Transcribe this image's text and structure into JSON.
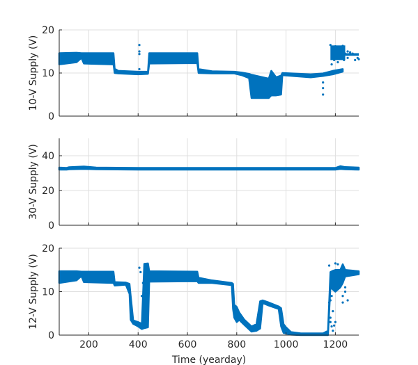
{
  "chart_data": [
    {
      "type": "scatter",
      "title": "",
      "xlabel": "",
      "ylabel": "10-V Supply (V)",
      "xlim": [
        80,
        1295
      ],
      "ylim": [
        0,
        20
      ],
      "xticks": [
        200,
        400,
        600,
        800,
        1000,
        1200
      ],
      "xtick_labels": [
        "",
        "",
        "",
        "",
        "",
        ""
      ],
      "yticks": [
        0,
        10,
        20
      ],
      "ytick_labels": [
        "0",
        "10",
        "20"
      ],
      "grid": true,
      "color": "#0072BD",
      "series": [
        {
          "name": "10-V Supply",
          "envelope": [
            [
              80,
              12.0,
              14.6
            ],
            [
              150,
              12.5,
              14.7
            ],
            [
              170,
              13.5,
              14.6
            ],
            [
              180,
              12.2,
              14.6
            ],
            [
              300,
              12.0,
              14.6
            ],
            [
              305,
              10.0,
              11.0
            ],
            [
              320,
              9.9,
              10.5
            ],
            [
              400,
              9.7,
              10.3
            ],
            [
              440,
              9.8,
              10.3
            ],
            [
              445,
              12.2,
              14.6
            ],
            [
              640,
              12.3,
              14.6
            ],
            [
              645,
              10.0,
              10.9
            ],
            [
              700,
              9.9,
              10.4
            ],
            [
              790,
              9.9,
              10.3
            ],
            [
              820,
              9.5,
              10.1
            ],
            [
              850,
              8.8,
              9.8
            ],
            [
              860,
              4.2,
              9.6
            ],
            [
              930,
              4.2,
              8.7
            ],
            [
              940,
              4.8,
              10.5
            ],
            [
              960,
              4.8,
              9.0
            ],
            [
              980,
              5.0,
              9.4
            ],
            [
              985,
              9.5,
              10.0
            ],
            [
              1100,
              9.0,
              9.7
            ],
            [
              1150,
              9.3,
              9.9
            ],
            [
              1190,
              9.7,
              10.5
            ],
            [
              1230,
              10.3,
              10.9
            ]
          ],
          "outliers": [
            [
              405,
              16.5
            ],
            [
              405,
              15.0
            ],
            [
              405,
              14.4
            ],
            [
              405,
              10.9
            ],
            [
              1150,
              5.0
            ],
            [
              1150,
              6.5
            ],
            [
              1150,
              7.8
            ],
            [
              1180,
              16.5
            ],
            [
              1190,
              15.5
            ],
            [
              1200,
              16.2
            ],
            [
              1230,
              16.3
            ],
            [
              1240,
              14.5
            ],
            [
              1250,
              15.0
            ],
            [
              1260,
              14.8
            ],
            [
              1270,
              14.5
            ],
            [
              1290,
              13.5
            ],
            [
              1185,
              12.0
            ],
            [
              1195,
              13.0
            ],
            [
              1210,
              12.5
            ],
            [
              1220,
              14.0
            ],
            [
              1235,
              13.0
            ],
            [
              1250,
              13.5
            ],
            [
              1280,
              13.0
            ],
            [
              1295,
              13.2
            ]
          ],
          "blocks": [
            [
              1180,
              1240,
              13.0,
              16.4
            ],
            [
              1240,
              1295,
              14.0,
              14.6
            ]
          ]
        }
      ]
    },
    {
      "type": "scatter",
      "title": "",
      "xlabel": "",
      "ylabel": "30-V Supply (V)",
      "xlim": [
        80,
        1295
      ],
      "ylim": [
        0,
        50
      ],
      "xticks": [
        200,
        400,
        600,
        800,
        1000,
        1200
      ],
      "xtick_labels": [
        "",
        "",
        "",
        "",
        "",
        ""
      ],
      "yticks": [
        0,
        20,
        40
      ],
      "ytick_labels": [
        "0",
        "20",
        "40"
      ],
      "grid": true,
      "color": "#0072BD",
      "series": [
        {
          "name": "30-V Supply",
          "envelope": [
            [
              80,
              32.0,
              33.2
            ],
            [
              110,
              32.0,
              33.0
            ],
            [
              120,
              32.2,
              33.4
            ],
            [
              180,
              32.4,
              33.8
            ],
            [
              230,
              32.2,
              33.2
            ],
            [
              400,
              32.0,
              33.0
            ],
            [
              700,
              32.0,
              33.0
            ],
            [
              1000,
              32.0,
              33.0
            ],
            [
              1200,
              32.0,
              33.0
            ],
            [
              1220,
              32.4,
              34.0
            ],
            [
              1240,
              32.2,
              33.5
            ],
            [
              1295,
              32.0,
              33.2
            ]
          ],
          "outliers": [],
          "blocks": []
        }
      ]
    },
    {
      "type": "scatter",
      "title": "",
      "xlabel": "Time (yearday)",
      "ylabel": "12-V Supply (V)",
      "xlim": [
        80,
        1295
      ],
      "ylim": [
        0,
        20
      ],
      "xticks": [
        200,
        400,
        600,
        800,
        1000,
        1200
      ],
      "xtick_labels": [
        "200",
        "400",
        "600",
        "800",
        "1000",
        "1200"
      ],
      "yticks": [
        0,
        10,
        20
      ],
      "ytick_labels": [
        "0",
        "10",
        "20"
      ],
      "grid": true,
      "color": "#0072BD",
      "series": [
        {
          "name": "12-V Supply",
          "envelope": [
            [
              80,
              12.0,
              14.7
            ],
            [
              150,
              12.6,
              14.7
            ],
            [
              170,
              13.6,
              14.6
            ],
            [
              180,
              12.2,
              14.6
            ],
            [
              300,
              12.0,
              14.6
            ],
            [
              305,
              11.4,
              12.2
            ],
            [
              350,
              11.6,
              12.1
            ],
            [
              365,
              9.5,
              11.8
            ],
            [
              370,
              3.5,
              9.0
            ],
            [
              380,
              2.6,
              3.4
            ],
            [
              400,
              2.0,
              3.0
            ],
            [
              415,
              1.4,
              2.6
            ],
            [
              425,
              1.6,
              16.4
            ],
            [
              440,
              1.8,
              16.5
            ],
            [
              445,
              12.3,
              14.7
            ],
            [
              640,
              12.4,
              14.6
            ],
            [
              645,
              12.0,
              13.2
            ],
            [
              700,
              12.0,
              12.6
            ],
            [
              780,
              11.5,
              12.0
            ],
            [
              785,
              6.0,
              11.8
            ],
            [
              790,
              4.0,
              7.0
            ],
            [
              800,
              3.0,
              6.5
            ],
            [
              810,
              3.5,
              5.2
            ],
            [
              830,
              2.4,
              3.6
            ],
            [
              860,
              0.8,
              2.0
            ],
            [
              880,
              1.0,
              2.5
            ],
            [
              895,
              1.5,
              7.8
            ],
            [
              905,
              7.4,
              8.0
            ],
            [
              930,
              6.8,
              7.5
            ],
            [
              970,
              6.0,
              6.6
            ],
            [
              980,
              2.0,
              6.2
            ],
            [
              990,
              0.5,
              2.5
            ],
            [
              1000,
              0.4,
              1.8
            ],
            [
              1020,
              0.1,
              0.7
            ],
            [
              1060,
              0.0,
              0.4
            ],
            [
              1150,
              0.0,
              0.4
            ],
            [
              1170,
              0.0,
              1.0
            ],
            [
              1180,
              11.0,
              14.5
            ],
            [
              1190,
              10.5,
              14.8
            ],
            [
              1200,
              10.0,
              15.0
            ],
            [
              1220,
              11.0,
              15.0
            ],
            [
              1230,
              12.0,
              16.3
            ],
            [
              1240,
              13.5,
              15.0
            ],
            [
              1295,
              14.0,
              14.7
            ]
          ],
          "outliers": [
            [
              1175,
              16.0
            ],
            [
              1175,
              7.5
            ],
            [
              1175,
              6.0
            ],
            [
              1180,
              4.0
            ],
            [
              1180,
              3.0
            ],
            [
              1185,
              2.0
            ],
            [
              1190,
              5.5
            ],
            [
              1190,
              1.0
            ],
            [
              1195,
              2.2
            ],
            [
              1200,
              3.0
            ],
            [
              1180,
              8.0
            ],
            [
              1185,
              9.0
            ],
            [
              1230,
              9.0
            ],
            [
              1230,
              7.5
            ],
            [
              1240,
              11.0
            ],
            [
              1240,
              10.0
            ],
            [
              1250,
              8.0
            ],
            [
              1210,
              16.3
            ],
            [
              1200,
              16.5
            ],
            [
              420,
              12.0
            ],
            [
              415,
              9.0
            ],
            [
              420,
              7.0
            ],
            [
              430,
              5.5
            ],
            [
              410,
              14.5
            ],
            [
              405,
              15.5
            ],
            [
              500,
              13.5
            ],
            [
              520,
              13.0
            ],
            [
              560,
              13.2
            ]
          ],
          "blocks": []
        }
      ]
    }
  ]
}
